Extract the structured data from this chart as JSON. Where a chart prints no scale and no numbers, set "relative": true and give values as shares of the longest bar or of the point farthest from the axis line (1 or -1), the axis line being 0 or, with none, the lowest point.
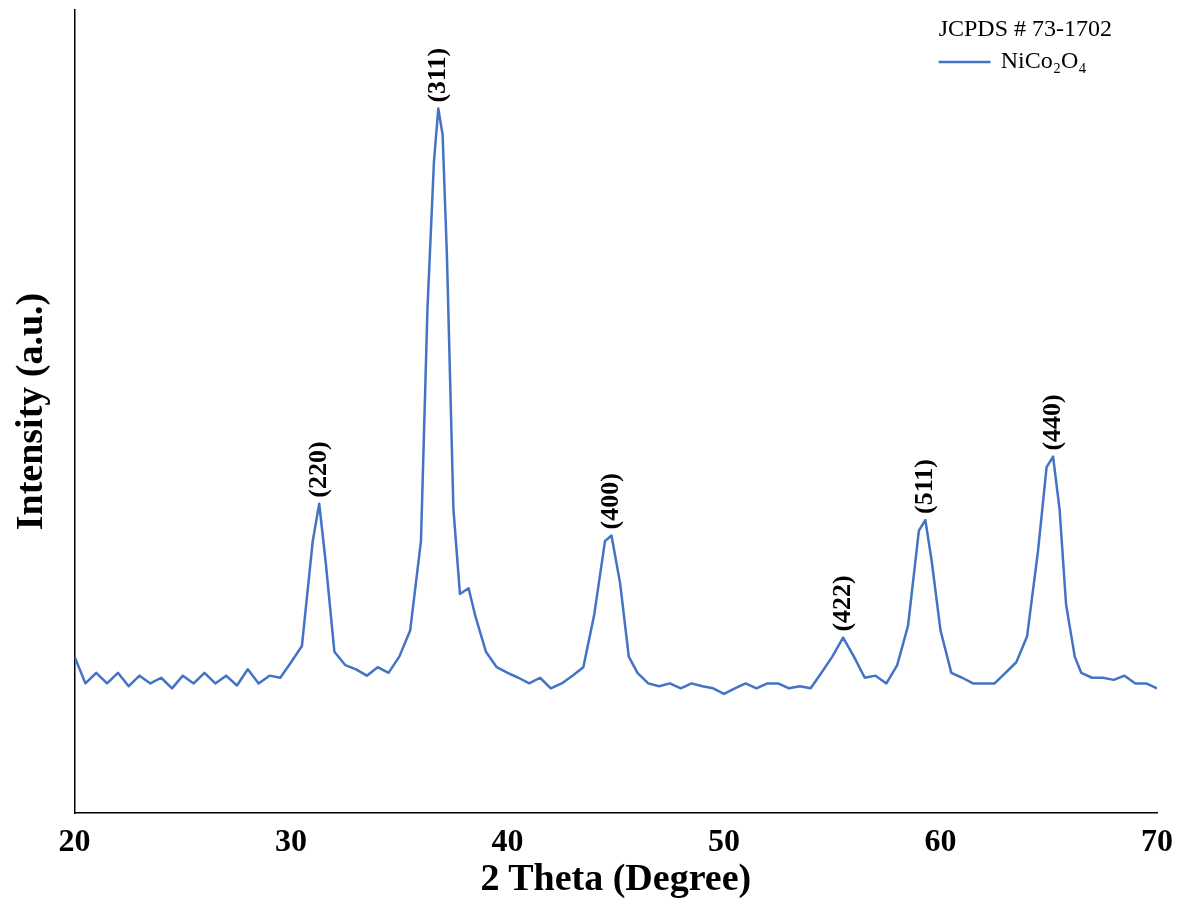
{
  "chart_data": {
    "type": "line",
    "xlabel": "2 Theta (Degree)",
    "ylabel": "Intensity (a.u.)",
    "relative": true,
    "legend": "top right",
    "legend_title": "JCPDS # 73-1702",
    "grid": false,
    "marker": "none",
    "line_style": "solid",
    "xlim": [
      20,
      70
    ],
    "xticks": [
      20,
      30,
      40,
      50,
      60,
      70
    ],
    "series": [
      {
        "name": "NiCo₂O₄",
        "color": "#4472c4",
        "x": [
          20,
          20.5,
          21,
          21.5,
          22,
          22.5,
          23,
          23.5,
          24,
          24.5,
          25,
          25.5,
          26,
          26.5,
          27,
          27.5,
          28,
          28.5,
          29,
          29.5,
          30,
          30.5,
          31,
          31.3,
          31.6,
          32,
          32.5,
          33,
          33.5,
          34,
          34.5,
          35,
          35.5,
          36,
          36.3,
          36.6,
          36.8,
          37,
          37.2,
          37.5,
          37.8,
          38.2,
          38.5,
          39,
          39.5,
          40,
          40.5,
          41,
          41.5,
          42,
          42.5,
          43,
          43.5,
          44,
          44.5,
          44.8,
          45.2,
          45.6,
          46,
          46.5,
          47,
          47.5,
          48,
          48.5,
          49,
          49.5,
          50,
          50.5,
          51,
          51.5,
          52,
          52.5,
          53,
          53.5,
          54,
          54.5,
          55,
          55.5,
          56,
          56.5,
          57,
          57.5,
          58,
          58.5,
          59,
          59.3,
          59.6,
          60,
          60.5,
          61,
          61.5,
          62,
          62.5,
          63,
          63.5,
          64,
          64.5,
          64.9,
          65.2,
          65.5,
          65.8,
          66.2,
          66.5,
          67,
          67.5,
          68,
          68.5,
          69,
          69.5,
          70
        ],
        "values": [
          0.222,
          0.184,
          0.199,
          0.184,
          0.199,
          0.18,
          0.195,
          0.184,
          0.192,
          0.177,
          0.195,
          0.184,
          0.199,
          0.184,
          0.195,
          0.181,
          0.204,
          0.184,
          0.195,
          0.192,
          0.214,
          0.237,
          0.386,
          0.439,
          0.356,
          0.229,
          0.21,
          0.204,
          0.195,
          0.207,
          0.199,
          0.222,
          0.259,
          0.386,
          0.716,
          0.925,
          1,
          0.963,
          0.79,
          0.431,
          0.311,
          0.319,
          0.281,
          0.229,
          0.207,
          0.199,
          0.192,
          0.184,
          0.192,
          0.177,
          0.184,
          0.195,
          0.207,
          0.281,
          0.386,
          0.394,
          0.326,
          0.222,
          0.199,
          0.184,
          0.18,
          0.184,
          0.177,
          0.184,
          0.18,
          0.177,
          0.169,
          0.177,
          0.184,
          0.177,
          0.184,
          0.184,
          0.177,
          0.18,
          0.177,
          0.199,
          0.222,
          0.249,
          0.222,
          0.192,
          0.195,
          0.184,
          0.21,
          0.266,
          0.401,
          0.416,
          0.356,
          0.259,
          0.199,
          0.192,
          0.184,
          0.184,
          0.184,
          0.199,
          0.214,
          0.251,
          0.371,
          0.491,
          0.506,
          0.431,
          0.296,
          0.222,
          0.199,
          0.192,
          0.192,
          0.189,
          0.195,
          0.184,
          0.184,
          0.177
        ]
      }
    ],
    "annotations": [
      {
        "text": "(220)",
        "x": 31.3,
        "y": 0.439
      },
      {
        "text": "(311)",
        "x": 36.8,
        "y": 1
      },
      {
        "text": "(400)",
        "x": 44.8,
        "y": 0.394
      },
      {
        "text": "(422)",
        "x": 55.5,
        "y": 0.249
      },
      {
        "text": "(511)",
        "x": 59.3,
        "y": 0.416
      },
      {
        "text": "(440)",
        "x": 65.2,
        "y": 0.506
      }
    ]
  }
}
